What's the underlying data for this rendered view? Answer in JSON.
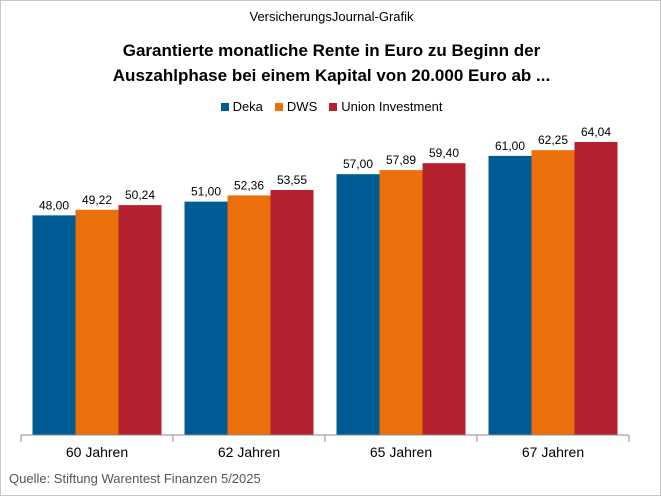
{
  "header_note": "VersicherungsJournal-Grafik",
  "source": "Quelle: Stiftung Warentest Finanzen 5/2025",
  "chart_data": {
    "type": "bar",
    "title_lines": [
      "Garantierte monatliche Rente in Euro zu Beginn der",
      "Auszahlphase  bei einem Kapital von 20.000 Euro ab ..."
    ],
    "categories": [
      "60 Jahren",
      "62 Jahren",
      "65 Jahren",
      "67 Jahren"
    ],
    "series": [
      {
        "name": "Deka",
        "color": "#005C94",
        "values": [
          48.0,
          51.0,
          57.0,
          61.0
        ],
        "labels": [
          "48,00",
          "51,00",
          "57,00",
          "61,00"
        ]
      },
      {
        "name": "DWS",
        "color": "#EB6F0A",
        "values": [
          49.22,
          52.36,
          57.89,
          62.25
        ],
        "labels": [
          "49,22",
          "52,36",
          "57,89",
          "62,25"
        ]
      },
      {
        "name": "Union Investment",
        "color": "#B5202E",
        "values": [
          50.24,
          53.55,
          59.4,
          64.04
        ],
        "labels": [
          "50,24",
          "53,55",
          "59,40",
          "64,04"
        ]
      }
    ],
    "ylim": [
      0,
      66
    ],
    "grid": false,
    "legend_position": "top-center"
  }
}
